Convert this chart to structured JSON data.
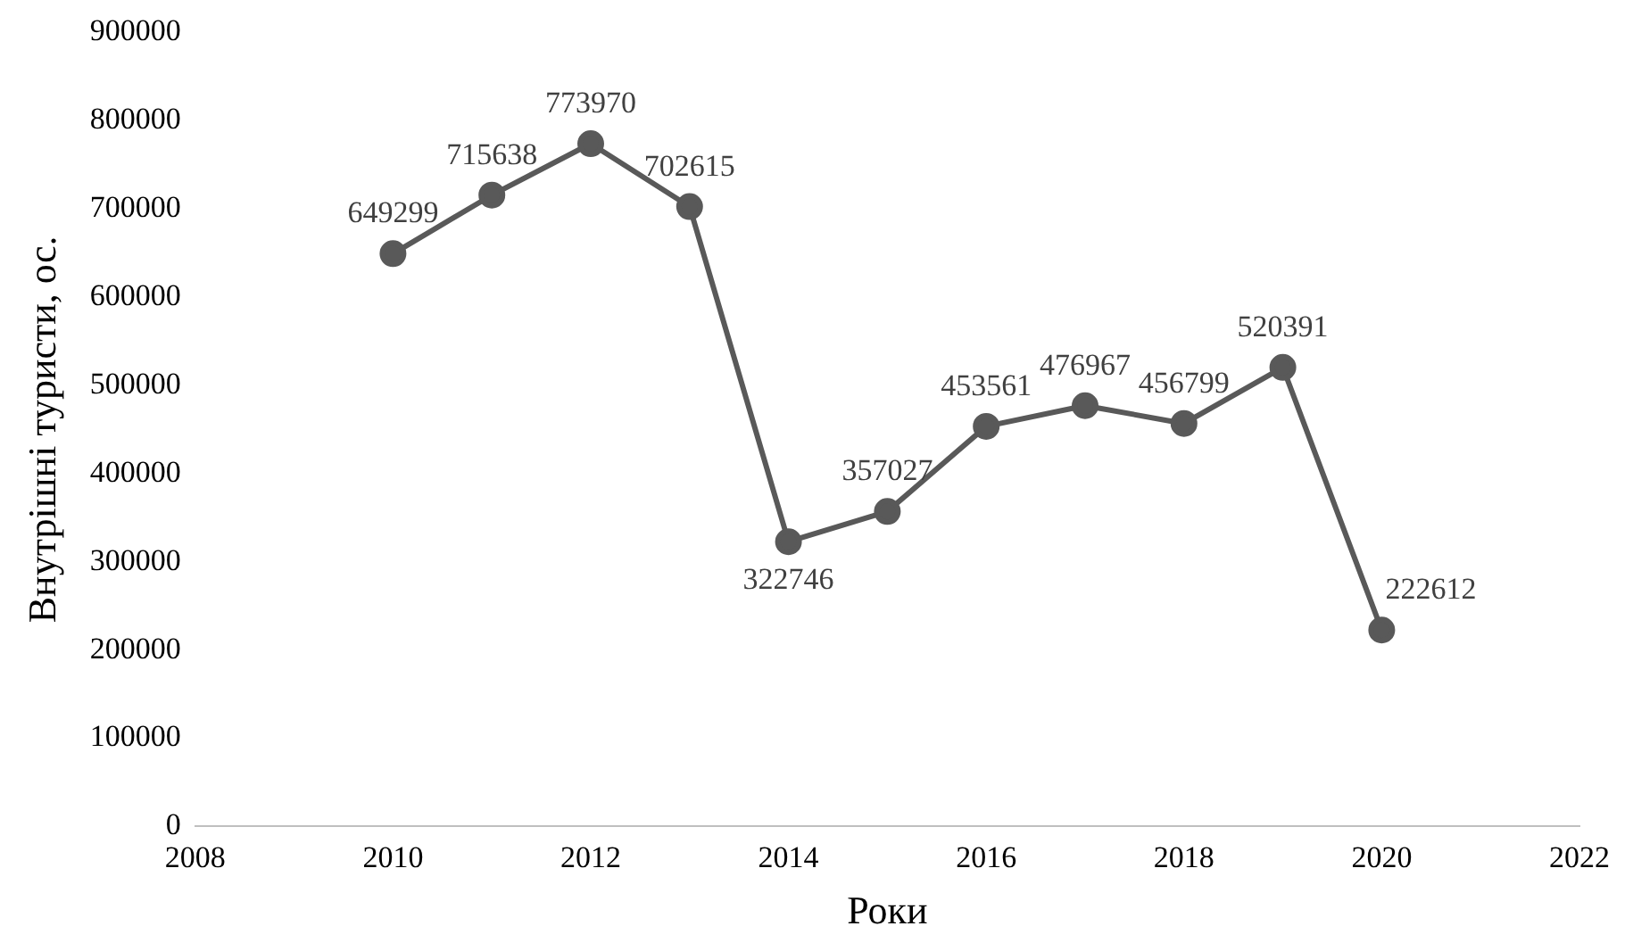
{
  "chart_data": {
    "type": "line",
    "xlabel": "Роки",
    "ylabel": "Внутрішні туристи, ос.",
    "x": [
      2010,
      2011,
      2012,
      2013,
      2014,
      2015,
      2016,
      2017,
      2018,
      2019,
      2020
    ],
    "series": [
      {
        "color": "#595959",
        "values": [
          649299,
          715638,
          773970,
          702615,
          322746,
          357027,
          453561,
          476967,
          456799,
          520391,
          222612
        ]
      }
    ],
    "xlim": [
      2008,
      2022
    ],
    "xticks": [
      2008,
      2010,
      2012,
      2014,
      2016,
      2018,
      2020,
      2022
    ],
    "ylim": [
      0,
      900000
    ],
    "yticks": [
      0,
      100000,
      200000,
      300000,
      400000,
      500000,
      600000,
      700000,
      800000,
      900000
    ],
    "marker": "circle",
    "line_style": "solid",
    "data_labels": true,
    "grid": false,
    "legend": false
  }
}
